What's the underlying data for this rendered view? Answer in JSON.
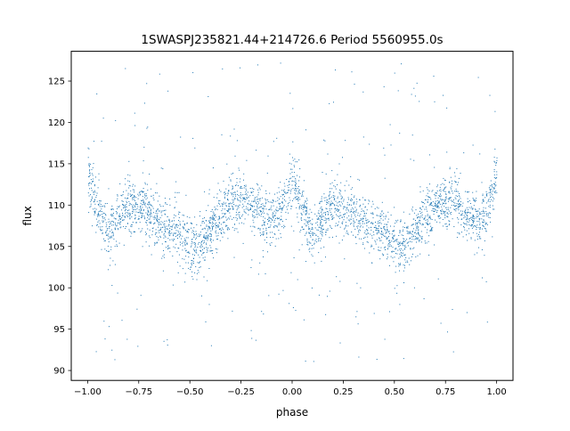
{
  "chart_data": {
    "type": "scatter",
    "title": "1SWASPJ235821.44+214726.6 Period 5560955.0s",
    "xlabel": "phase",
    "ylabel": "flux",
    "xlim": [
      -1.08,
      1.08
    ],
    "ylim": [
      88.8,
      128.6
    ],
    "xticks": [
      -1.0,
      -0.75,
      -0.5,
      -0.25,
      0.0,
      0.25,
      0.5,
      0.75,
      1.0
    ],
    "xtick_labels": [
      "−1.00",
      "−0.75",
      "−0.50",
      "−0.25",
      "0.00",
      "0.25",
      "0.50",
      "0.75",
      "1.00"
    ],
    "yticks": [
      90,
      95,
      100,
      105,
      110,
      115,
      120,
      125
    ],
    "ytick_labels": [
      "90",
      "95",
      "100",
      "105",
      "110",
      "115",
      "120",
      "125"
    ],
    "grid": false,
    "marker_color": "#1f77b4",
    "folded_profile": {
      "phase": [
        0.0,
        0.02,
        0.05,
        0.08,
        0.1,
        0.14,
        0.18,
        0.22,
        0.27,
        0.32,
        0.37,
        0.42,
        0.46,
        0.5,
        0.53,
        0.56,
        0.6,
        0.65,
        0.7,
        0.74,
        0.78,
        0.82,
        0.86,
        0.9,
        0.94,
        0.98,
        1.0
      ],
      "flux": [
        113.5,
        112.0,
        109.5,
        107.5,
        106.5,
        108.0,
        110.0,
        110.0,
        109.5,
        108.5,
        107.5,
        107.0,
        106.5,
        105.5,
        105.0,
        106.0,
        107.0,
        108.5,
        110.0,
        110.5,
        110.5,
        110.0,
        108.5,
        108.0,
        109.0,
        112.0,
        113.5
      ]
    }
  }
}
